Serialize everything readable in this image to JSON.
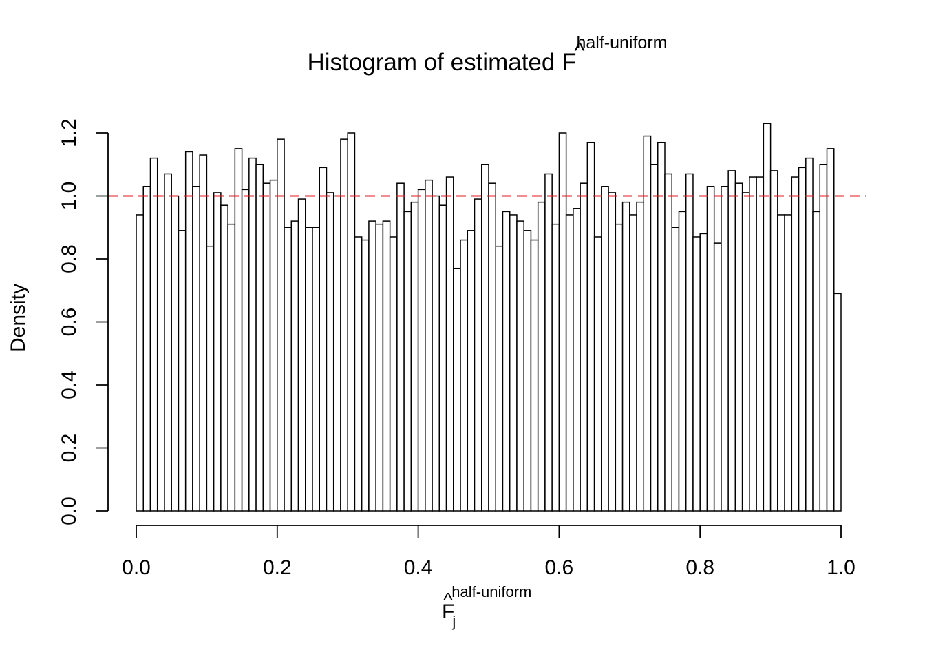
{
  "chart_data": {
    "type": "bar",
    "title": {
      "text": "Histogram of estimated ",
      "symbol": "F",
      "superscript": "half-uniform"
    },
    "xlabel": {
      "symbol": "F",
      "superscript": "half-uniform",
      "subscript": "j"
    },
    "ylabel": "Density",
    "xlim": [
      0,
      1
    ],
    "ylim": [
      0,
      1.2
    ],
    "x_ticks": [
      "0.0",
      "0.2",
      "0.4",
      "0.6",
      "0.8",
      "1.0"
    ],
    "y_ticks": [
      "0.0",
      "0.2",
      "0.4",
      "0.6",
      "0.8",
      "1.0",
      "1.2"
    ],
    "bin_width": 0.01,
    "bin_start": 0,
    "values": [
      0.94,
      1.03,
      1.12,
      1.0,
      1.07,
      1.0,
      0.89,
      1.14,
      1.03,
      1.13,
      0.84,
      1.01,
      0.97,
      0.91,
      1.15,
      1.02,
      1.12,
      1.1,
      1.04,
      1.05,
      1.18,
      0.9,
      0.92,
      0.99,
      0.9,
      0.9,
      1.09,
      1.01,
      1.0,
      1.18,
      1.2,
      0.87,
      0.86,
      0.92,
      0.91,
      0.92,
      0.87,
      1.04,
      0.95,
      0.98,
      1.02,
      1.05,
      1.0,
      0.97,
      1.06,
      0.77,
      0.86,
      0.89,
      0.99,
      1.1,
      1.04,
      0.84,
      0.95,
      0.94,
      0.92,
      0.89,
      0.86,
      0.98,
      1.07,
      0.91,
      1.2,
      0.94,
      0.96,
      1.04,
      1.17,
      0.87,
      1.03,
      1.01,
      0.91,
      0.98,
      0.94,
      0.98,
      1.19,
      1.1,
      1.17,
      1.07,
      0.9,
      0.95,
      1.07,
      0.87,
      0.88,
      1.03,
      0.85,
      1.03,
      1.08,
      1.04,
      1.01,
      1.06,
      1.06,
      1.23,
      1.08,
      0.94,
      0.94,
      1.06,
      1.09,
      1.12,
      0.95,
      1.1,
      1.15,
      0.69
    ],
    "reference_line": {
      "y": 1.0,
      "style": "dashed",
      "color": "#e41a1c"
    },
    "bar_fill": "#ffffff",
    "bar_stroke": "#000000",
    "grid": false,
    "legend": "none"
  }
}
